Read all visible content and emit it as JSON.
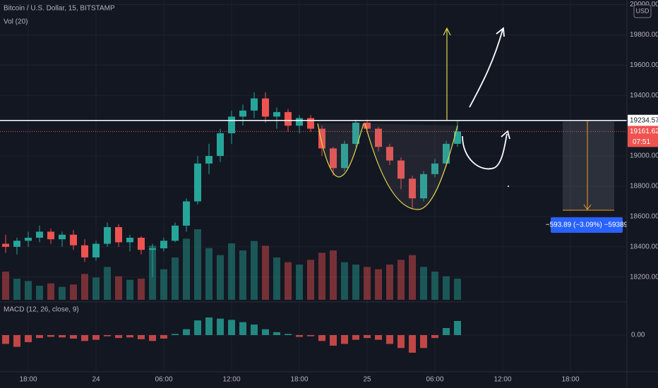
{
  "header": {
    "symbol": "Bitcoin / U.S. Dollar, 15, BITSTAMP",
    "volume_title": "Vol (20)",
    "currency": "USD"
  },
  "chart_data": [
    {
      "type": "candlestick",
      "categories": [
        null,
        null,
        "18:00",
        null,
        null,
        null,
        null,
        null,
        "24",
        null,
        null,
        null,
        null,
        null,
        "06:00",
        null,
        null,
        null,
        null,
        null,
        "12:00",
        null,
        null,
        null,
        null,
        null,
        "18:00",
        null,
        null,
        null,
        null,
        null,
        "25",
        null,
        null,
        null,
        null,
        null,
        "06:00",
        null,
        null,
        null,
        null,
        null,
        "12:00",
        null,
        null,
        null,
        null,
        null,
        "18:00",
        null,
        null,
        null,
        null,
        null
      ],
      "ohlc": [
        [
          18420,
          18480,
          18360,
          18400
        ],
        [
          18400,
          18460,
          18350,
          18440
        ],
        [
          18440,
          18500,
          18400,
          18460
        ],
        [
          18460,
          18540,
          18430,
          18500
        ],
        [
          18500,
          18520,
          18420,
          18450
        ],
        [
          18450,
          18500,
          18400,
          18480
        ],
        [
          18480,
          18510,
          18380,
          18410
        ],
        [
          18410,
          18450,
          18300,
          18330
        ],
        [
          18330,
          18440,
          18310,
          18420
        ],
        [
          18420,
          18560,
          18400,
          18530
        ],
        [
          18530,
          18550,
          18400,
          18430
        ],
        [
          18430,
          18480,
          18370,
          18460
        ],
        [
          18460,
          18470,
          18350,
          18380
        ],
        [
          18380,
          18420,
          18200,
          18390
        ],
        [
          18390,
          18460,
          18370,
          18440
        ],
        [
          18440,
          18560,
          18430,
          18540
        ],
        [
          18540,
          18720,
          18500,
          18700
        ],
        [
          18700,
          19000,
          18680,
          18950
        ],
        [
          18950,
          19080,
          18880,
          19000
        ],
        [
          19000,
          19180,
          18960,
          19150
        ],
        [
          19150,
          19300,
          19080,
          19260
        ],
        [
          19260,
          19340,
          19200,
          19300
        ],
        [
          19300,
          19420,
          19250,
          19380
        ],
        [
          19380,
          19420,
          19220,
          19260
        ],
        [
          19260,
          19320,
          19180,
          19290
        ],
        [
          19290,
          19310,
          19160,
          19200
        ],
        [
          19200,
          19270,
          19150,
          19250
        ],
        [
          19250,
          19270,
          19160,
          19180
        ],
        [
          19180,
          19200,
          19000,
          19050
        ],
        [
          19050,
          19060,
          18870,
          18920
        ],
        [
          18920,
          19100,
          18900,
          19080
        ],
        [
          19080,
          19240,
          19060,
          19220
        ],
        [
          19220,
          19240,
          19150,
          19180
        ],
        [
          19180,
          19190,
          19030,
          19060
        ],
        [
          19060,
          19080,
          18940,
          18970
        ],
        [
          18970,
          18990,
          18780,
          18850
        ],
        [
          18850,
          18870,
          18650,
          18720
        ],
        [
          18720,
          18900,
          18700,
          18880
        ],
        [
          18880,
          18980,
          18860,
          18950
        ],
        [
          18950,
          19100,
          18930,
          19080
        ],
        [
          19080,
          19230,
          19060,
          19161.62
        ],
        null,
        null,
        null,
        null,
        null,
        null,
        null,
        null,
        null,
        null,
        null,
        null,
        null,
        null,
        null
      ],
      "volume": [
        120,
        90,
        80,
        60,
        70,
        55,
        65,
        110,
        95,
        140,
        100,
        85,
        90,
        230,
        130,
        180,
        260,
        300,
        220,
        190,
        240,
        210,
        250,
        230,
        180,
        160,
        150,
        170,
        200,
        210,
        160,
        150,
        140,
        130,
        150,
        170,
        190,
        140,
        120,
        100,
        90,
        null,
        null,
        null,
        null,
        null,
        null,
        null,
        null,
        null,
        null,
        null,
        null,
        null,
        null,
        null
      ],
      "up_color": "#26a69a",
      "down_color": "#ef5350",
      "ylim": [
        18050,
        20030
      ],
      "yticks": [
        {
          "value": 20000,
          "label": "20000.00"
        },
        {
          "value": 19800,
          "label": "19800.00"
        },
        {
          "value": 19600,
          "label": "19600.00"
        },
        {
          "value": 19400,
          "label": "19400.00"
        },
        {
          "value": 19000,
          "label": "19000.00"
        },
        {
          "value": 18800,
          "label": "18800.00"
        },
        {
          "value": 18600,
          "label": "18600.00"
        },
        {
          "value": 18400,
          "label": "18400.00"
        },
        {
          "value": 18200,
          "label": "18200.00"
        }
      ],
      "resistance": 19234.57,
      "last_price": 19161.62,
      "countdown": "07:51",
      "measure_label": "−593.89 (−3.09%) −59389",
      "grid": true
    },
    {
      "type": "bar",
      "title": "MACD (12, 26, close, 9)",
      "values": [
        -15,
        -20,
        -12,
        -5,
        -3,
        -4,
        -6,
        -10,
        -8,
        -2,
        -5,
        -4,
        -7,
        -10,
        -6,
        2,
        10,
        25,
        30,
        28,
        26,
        22,
        18,
        10,
        5,
        2,
        -3,
        -2,
        -10,
        -18,
        -15,
        -8,
        -5,
        -8,
        -15,
        -22,
        -30,
        -22,
        -5,
        12,
        24
      ],
      "ylim": [
        -60,
        30
      ],
      "yticks": [
        {
          "value": 0,
          "label": "0.00"
        }
      ],
      "up_color": "#26a69a",
      "down_color": "#ef5350"
    }
  ]
}
